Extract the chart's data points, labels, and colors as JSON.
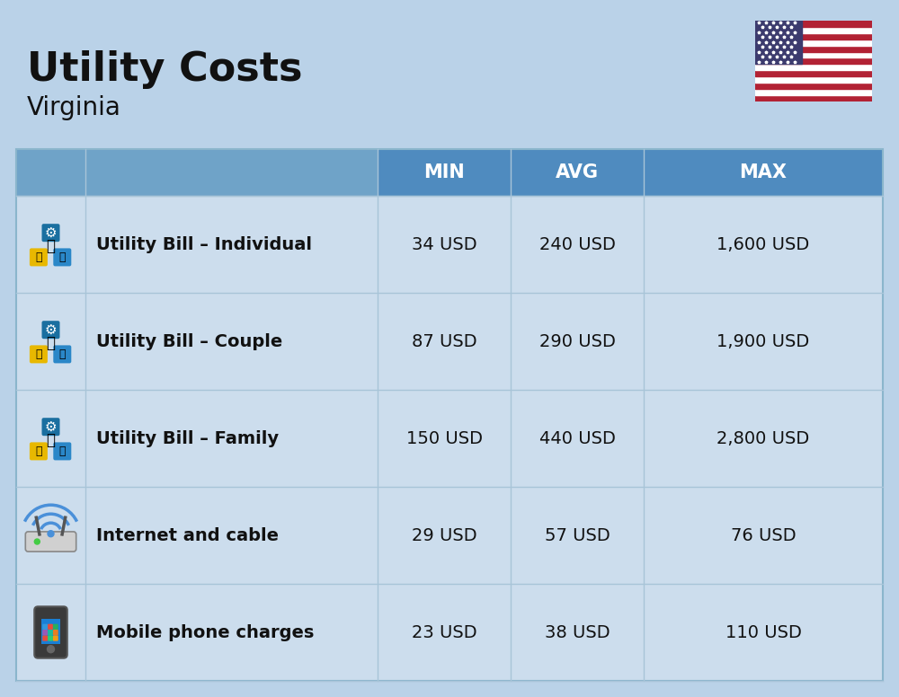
{
  "title": "Utility Costs",
  "subtitle": "Virginia",
  "background_color": "#bad2e8",
  "header_color": "#4f8bbf",
  "header_text_color": "#ffffff",
  "row_color": "#ccdded",
  "col_headers": [
    "MIN",
    "AVG",
    "MAX"
  ],
  "rows": [
    {
      "label": "Utility Bill – Individual",
      "min": "34 USD",
      "avg": "240 USD",
      "max": "1,600 USD",
      "icon": "utility"
    },
    {
      "label": "Utility Bill – Couple",
      "min": "87 USD",
      "avg": "290 USD",
      "max": "1,900 USD",
      "icon": "utility"
    },
    {
      "label": "Utility Bill – Family",
      "min": "150 USD",
      "avg": "440 USD",
      "max": "2,800 USD",
      "icon": "utility"
    },
    {
      "label": "Internet and cable",
      "min": "29 USD",
      "avg": "57 USD",
      "max": "76 USD",
      "icon": "internet"
    },
    {
      "label": "Mobile phone charges",
      "min": "23 USD",
      "avg": "38 USD",
      "max": "110 USD",
      "icon": "phone"
    }
  ],
  "figsize": [
    10.0,
    7.76
  ],
  "dpi": 100
}
